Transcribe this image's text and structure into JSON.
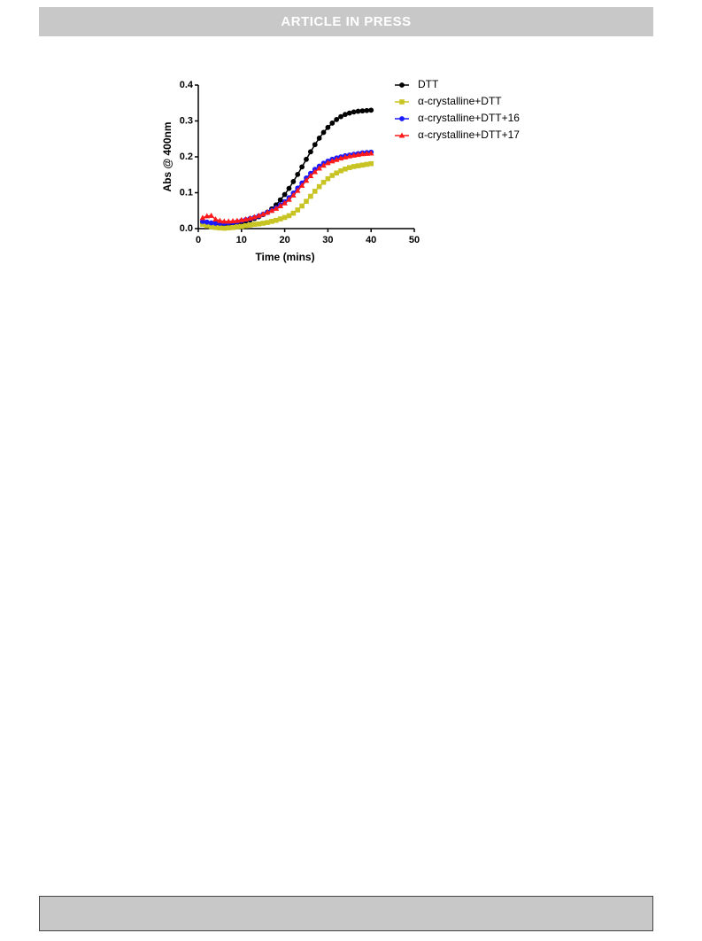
{
  "header": {
    "title": "ARTICLE IN PRESS"
  },
  "chart_data": {
    "type": "line",
    "x_label": "Time (mins)",
    "y_label": "Abs @ 400nm",
    "xlim": [
      0,
      50
    ],
    "xticks": [
      0,
      10,
      20,
      30,
      40,
      50
    ],
    "ylim": [
      0,
      0.4
    ],
    "yticks": [
      {
        "value": 0,
        "label": "0.0"
      },
      0.1,
      0.2,
      0.3,
      0.4
    ],
    "x": [
      1,
      2,
      3,
      4,
      5,
      6,
      7,
      8,
      9,
      10,
      11,
      12,
      13,
      14,
      15,
      16,
      17,
      18,
      19,
      20,
      21,
      22,
      23,
      24,
      25,
      26,
      27,
      28,
      29,
      30,
      31,
      32,
      33,
      34,
      35,
      36,
      37,
      38,
      39,
      40
    ],
    "series": [
      {
        "name": "DTT",
        "color": "#000000",
        "marker": "circle",
        "values": [
          0.015,
          0.014,
          0.013,
          0.012,
          0.012,
          0.012,
          0.013,
          0.014,
          0.016,
          0.018,
          0.021,
          0.024,
          0.028,
          0.033,
          0.039,
          0.046,
          0.055,
          0.066,
          0.08,
          0.095,
          0.112,
          0.131,
          0.151,
          0.172,
          0.193,
          0.214,
          0.234,
          0.252,
          0.268,
          0.282,
          0.294,
          0.304,
          0.312,
          0.318,
          0.322,
          0.325,
          0.327,
          0.328,
          0.329,
          0.33
        ]
      },
      {
        "name": "α-crystalline+DTT",
        "color": "#c8c424",
        "marker": "square",
        "values": [
          0.012,
          0.008,
          0.005,
          0.003,
          0.002,
          0.001,
          0.002,
          0.003,
          0.005,
          0.006,
          0.008,
          0.01,
          0.012,
          0.013,
          0.015,
          0.017,
          0.02,
          0.023,
          0.027,
          0.031,
          0.036,
          0.043,
          0.052,
          0.063,
          0.076,
          0.09,
          0.104,
          0.117,
          0.129,
          0.139,
          0.148,
          0.155,
          0.161,
          0.166,
          0.17,
          0.173,
          0.175,
          0.177,
          0.179,
          0.181
        ]
      },
      {
        "name": "α-crystalline+DTT+16",
        "color": "#1a1aff",
        "marker": "circle",
        "values": [
          0.02,
          0.018,
          0.016,
          0.015,
          0.015,
          0.015,
          0.016,
          0.017,
          0.019,
          0.022,
          0.025,
          0.028,
          0.031,
          0.035,
          0.04,
          0.045,
          0.051,
          0.058,
          0.066,
          0.075,
          0.086,
          0.099,
          0.113,
          0.127,
          0.141,
          0.154,
          0.165,
          0.174,
          0.182,
          0.188,
          0.193,
          0.197,
          0.2,
          0.203,
          0.205,
          0.207,
          0.209,
          0.211,
          0.212,
          0.213
        ]
      },
      {
        "name": "α-crystalline+DTT+17",
        "color": "#ff1a1a",
        "marker": "triangle",
        "values": [
          0.03,
          0.035,
          0.036,
          0.026,
          0.022,
          0.02,
          0.02,
          0.021,
          0.022,
          0.024,
          0.026,
          0.029,
          0.032,
          0.036,
          0.04,
          0.045,
          0.05,
          0.056,
          0.063,
          0.071,
          0.081,
          0.093,
          0.106,
          0.12,
          0.134,
          0.147,
          0.158,
          0.168,
          0.176,
          0.183,
          0.188,
          0.192,
          0.196,
          0.199,
          0.202,
          0.204,
          0.206,
          0.208,
          0.209,
          0.21
        ]
      }
    ]
  }
}
